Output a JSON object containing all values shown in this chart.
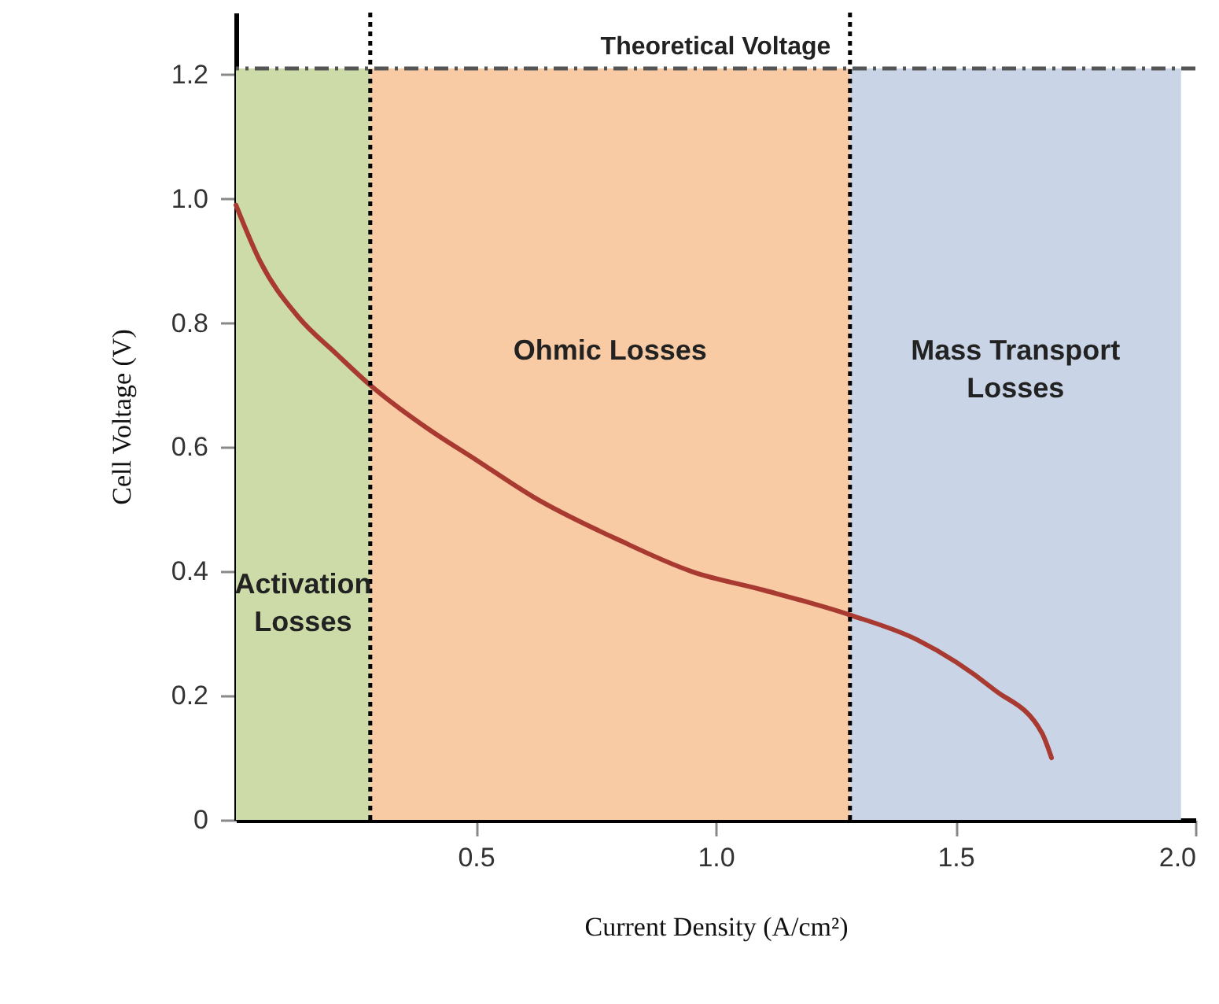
{
  "chart_data": {
    "type": "line",
    "xlabel": "Current Density (A/cm²)",
    "ylabel": "Cell Voltage (V)",
    "x": [
      0,
      0.05,
      0.13,
      0.21,
      0.28,
      0.4,
      0.5,
      0.62,
      0.8,
      0.95,
      1.1,
      1.28,
      1.42,
      1.58,
      1.68,
      1.7
    ],
    "series": [
      {
        "color": "#a83a32",
        "values": [
          0.99,
          0.9,
          0.81,
          0.75,
          0.7,
          0.63,
          0.58,
          0.52,
          0.45,
          0.4,
          0.37,
          0.33,
          0.29,
          0.21,
          0.14,
          0.1
        ]
      }
    ],
    "xlim": [
      0,
      2.0
    ],
    "ylim": [
      0,
      1.3
    ],
    "xticks": [
      0.5,
      {
        "value": 1,
        "label": "1.0"
      },
      1.5,
      {
        "value": 2,
        "label": "2.0"
      }
    ],
    "yticks": [
      0,
      0.2,
      0.4,
      0.6,
      0.8,
      {
        "value": 1,
        "label": "1.0"
      },
      1.2
    ],
    "bands": [
      {
        "axis": "x",
        "from": 0,
        "to": 0.28,
        "label": "Activation\nLosses",
        "color": "#ccdba8"
      },
      {
        "axis": "x",
        "from": 0.28,
        "to": 1.28,
        "label": "Ohmic Losses",
        "color": "#f8cba4"
      },
      {
        "axis": "x",
        "from": 1.28,
        "to": 1.97,
        "label": "Mass Transport\nLosses",
        "color": "#c9d5e6"
      }
    ],
    "ref_lines": [
      {
        "axis": "y",
        "value": 1.21,
        "label": "Theoretical Voltage",
        "line_style": "dashed",
        "color": "#555555"
      },
      {
        "axis": "x",
        "value": 0.28,
        "line_style": "dotted",
        "color": "#000000"
      },
      {
        "axis": "x",
        "value": 1.28,
        "line_style": "dotted",
        "color": "#000000"
      }
    ],
    "grid": false,
    "marker": "none",
    "line_style": "solid"
  }
}
